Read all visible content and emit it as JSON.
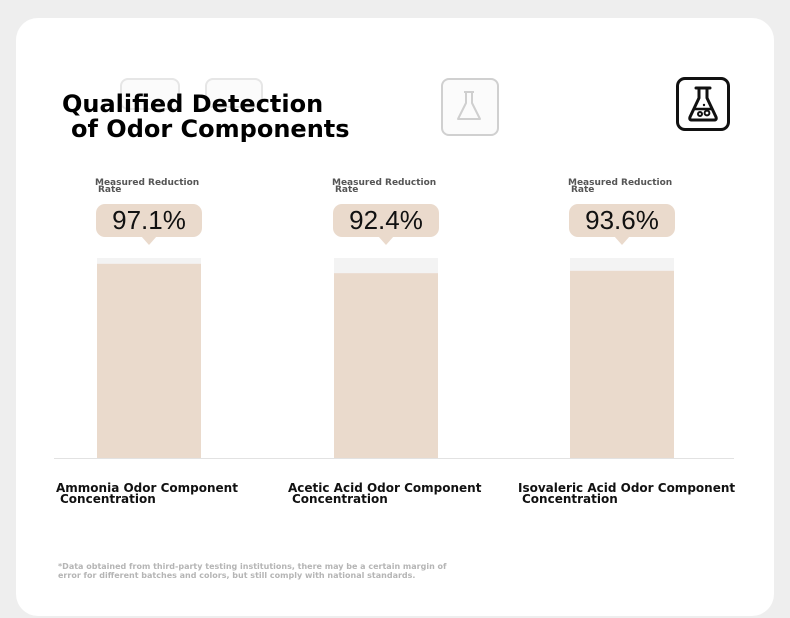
{
  "title": {
    "line1": "Qualified Detection",
    "line2": "of Odor Components"
  },
  "footnote": "*Data obtained from third-party testing institutions, there may be a certain margin of error for different batches and colors, but still comply with national standards.",
  "colors": {
    "bar": "#eadacc",
    "bar_track": "#f3f3f3",
    "bubble": "#eadacc",
    "axis": "#e2e2e2"
  },
  "icons": {
    "badge": "flask-icon"
  },
  "chart_data": {
    "type": "bar",
    "categories": [
      [
        "Ammonia Odor Component",
        "Concentration"
      ],
      [
        "Acetic Acid Odor Component",
        "Concentration"
      ],
      [
        "Isovaleric Acid Odor Component",
        "Concentration"
      ]
    ],
    "metric_label": [
      "Measured Reduction",
      "Rate"
    ],
    "values": [
      97.1,
      92.4,
      93.6
    ],
    "value_labels": [
      "97.1%",
      "92.4%",
      "93.6%"
    ],
    "ylim": [
      0,
      100
    ]
  }
}
